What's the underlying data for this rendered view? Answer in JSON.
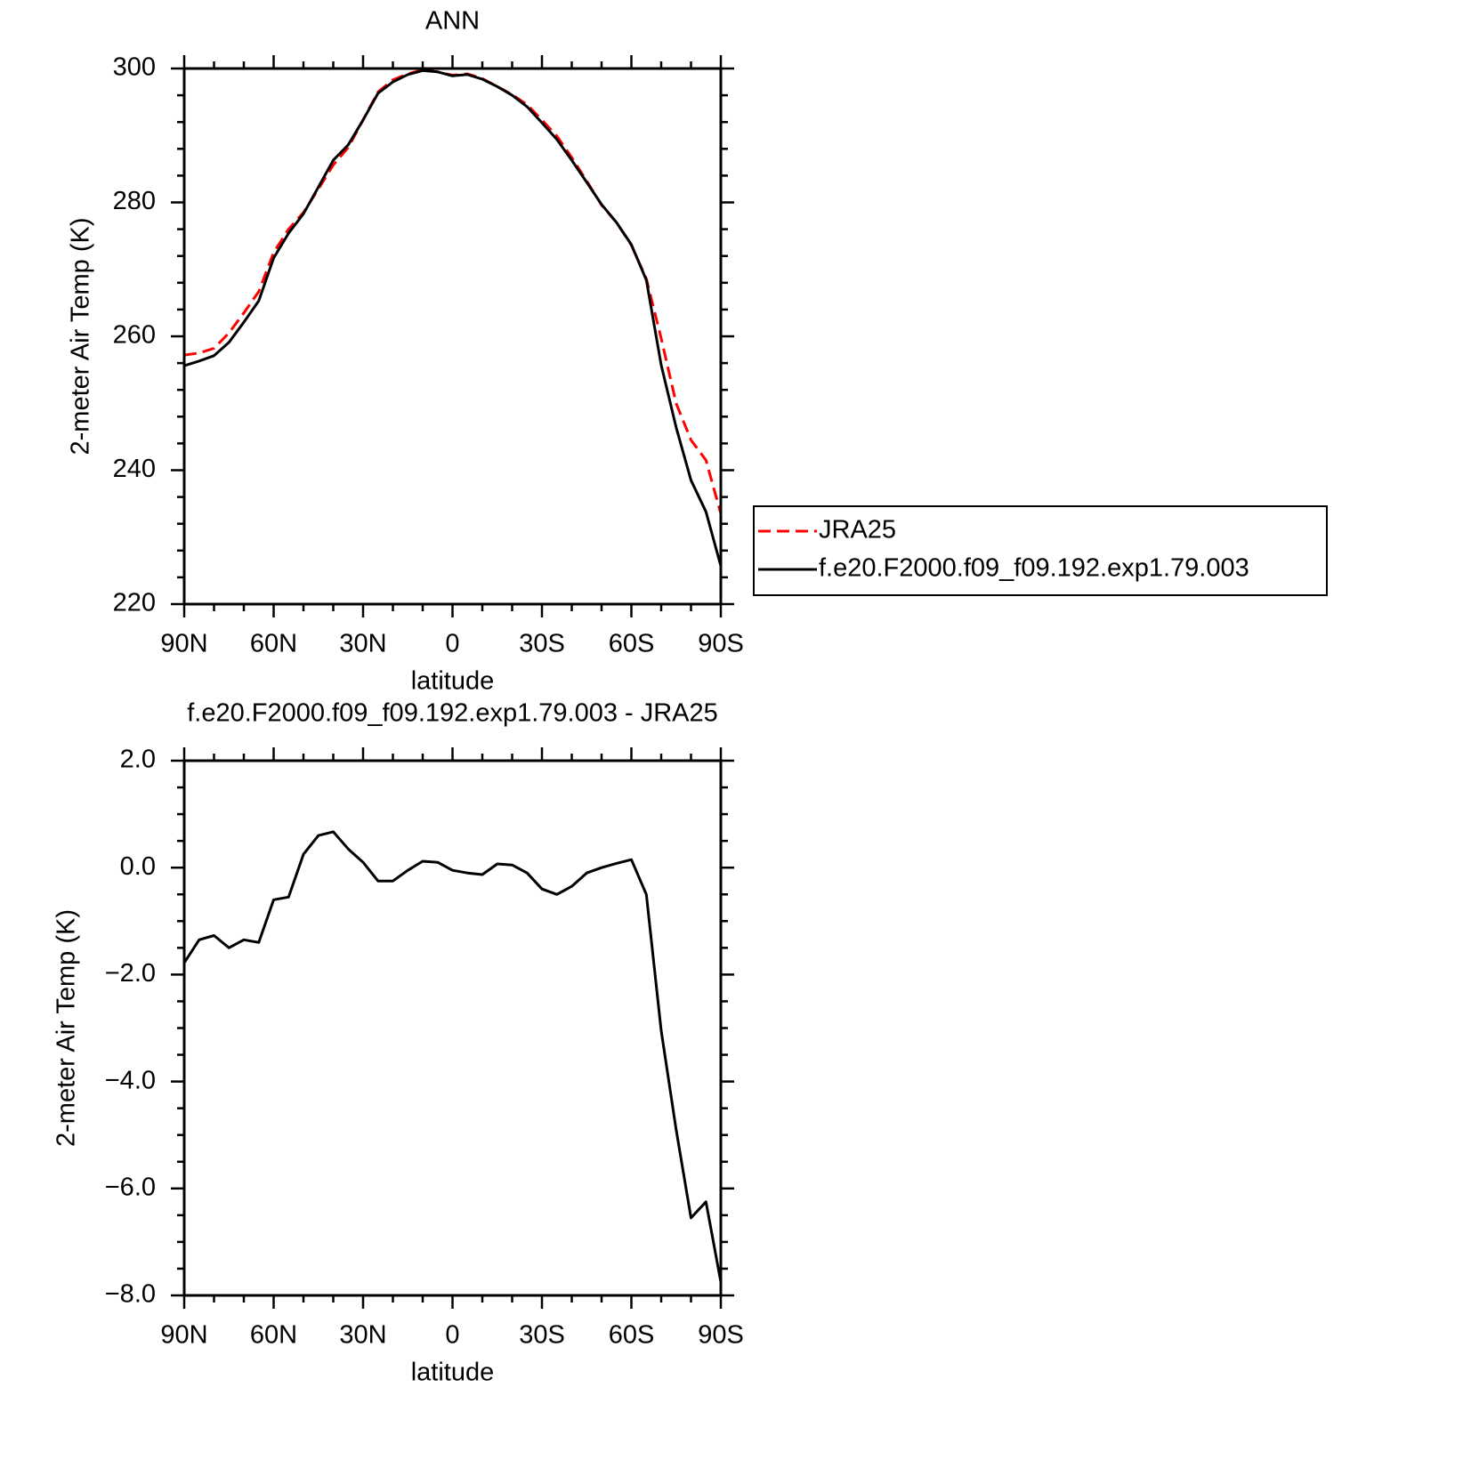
{
  "chart_data": [
    {
      "type": "line",
      "title": "ANN",
      "xlabel": "latitude",
      "ylabel": "2-meter Air Temp (K)",
      "x": [
        90,
        85,
        80,
        75,
        70,
        65,
        60,
        55,
        50,
        45,
        40,
        35,
        30,
        25,
        20,
        15,
        10,
        5,
        0,
        -5,
        -10,
        -15,
        -20,
        -25,
        -30,
        -35,
        -40,
        -45,
        -50,
        -55,
        -60,
        -65,
        -70,
        -75,
        -80,
        -85,
        -90
      ],
      "series": [
        {
          "name": "JRA25",
          "color": "#ff0000",
          "style": "dashed",
          "values": [
            257.2,
            257.5,
            258.2,
            260.5,
            263.5,
            266.7,
            272.5,
            276.0,
            278.5,
            282.0,
            285.6,
            288.2,
            292.3,
            296.5,
            298.3,
            299.2,
            299.8,
            299.5,
            299.0,
            299.2,
            298.5,
            297.3,
            296.1,
            294.6,
            292.3,
            289.9,
            286.7,
            283.2,
            279.6,
            277.0,
            273.6,
            268.6,
            259.7,
            250.0,
            244.5,
            241.5,
            233.5
          ]
        },
        {
          "name": "f.e20.F2000.f09_f09.192.exp1.79.003",
          "color": "#000000",
          "style": "solid",
          "values": [
            255.6,
            256.3,
            257.1,
            259.1,
            262.1,
            265.3,
            271.7,
            275.4,
            278.3,
            282.3,
            286.3,
            288.6,
            292.3,
            296.3,
            298.0,
            299.1,
            299.7,
            299.5,
            298.9,
            299.1,
            298.4,
            297.3,
            296.0,
            294.3,
            291.9,
            289.4,
            286.3,
            283.0,
            279.7,
            277.0,
            273.7,
            268.4,
            255.7,
            246.4,
            238.5,
            233.8,
            225.7
          ]
        }
      ],
      "xlim": [
        90,
        -90
      ],
      "xticks": [
        {
          "value": 90,
          "label": "90N"
        },
        {
          "value": 60,
          "label": "60N"
        },
        {
          "value": 30,
          "label": "30N"
        },
        0,
        {
          "value": -30,
          "label": "30S"
        },
        {
          "value": -60,
          "label": "60S"
        },
        {
          "value": -90,
          "label": "90S"
        }
      ],
      "ylim": [
        220,
        300
      ],
      "yticks": [
        220,
        240,
        260,
        280,
        300
      ],
      "grid": false,
      "legend": "right"
    },
    {
      "type": "line",
      "title": "f.e20.F2000.f09_f09.192.exp1.79.003 - JRA25",
      "xlabel": "latitude",
      "ylabel": "2-meter Air Temp (K)",
      "x": [
        90,
        85,
        80,
        75,
        70,
        65,
        60,
        55,
        50,
        45,
        40,
        35,
        30,
        25,
        20,
        15,
        10,
        5,
        0,
        -5,
        -10,
        -15,
        -20,
        -25,
        -30,
        -35,
        -40,
        -45,
        -50,
        -55,
        -60,
        -65,
        -70,
        -75,
        -80,
        -85,
        -90
      ],
      "color": "#000000",
      "style": "solid",
      "values": [
        -1.78,
        -1.35,
        -1.27,
        -1.5,
        -1.35,
        -1.4,
        -0.6,
        -0.55,
        0.25,
        0.6,
        0.67,
        0.35,
        0.1,
        -0.25,
        -0.25,
        -0.05,
        0.12,
        0.1,
        -0.05,
        -0.1,
        -0.13,
        0.07,
        0.05,
        -0.1,
        -0.4,
        -0.5,
        -0.35,
        -0.1,
        0.0,
        0.08,
        0.15,
        -0.5,
        -3.05,
        -4.9,
        -6.55,
        -6.25,
        -7.75
      ],
      "xlim": [
        90,
        -90
      ],
      "xticks": [
        {
          "value": 90,
          "label": "90N"
        },
        {
          "value": 60,
          "label": "60N"
        },
        {
          "value": 30,
          "label": "30N"
        },
        0,
        {
          "value": -30,
          "label": "30S"
        },
        {
          "value": -60,
          "label": "60S"
        },
        {
          "value": -90,
          "label": "90S"
        }
      ],
      "ylim": [
        -8,
        2
      ],
      "yticks": [
        {
          "value": -8,
          "label": "−8.0"
        },
        {
          "value": -6,
          "label": "−6.0"
        },
        {
          "value": -4,
          "label": "−4.0"
        },
        {
          "value": -2,
          "label": "−2.0"
        },
        {
          "value": 0,
          "label": "0.0"
        },
        {
          "value": 2,
          "label": "2.0"
        }
      ],
      "grid": false
    }
  ]
}
